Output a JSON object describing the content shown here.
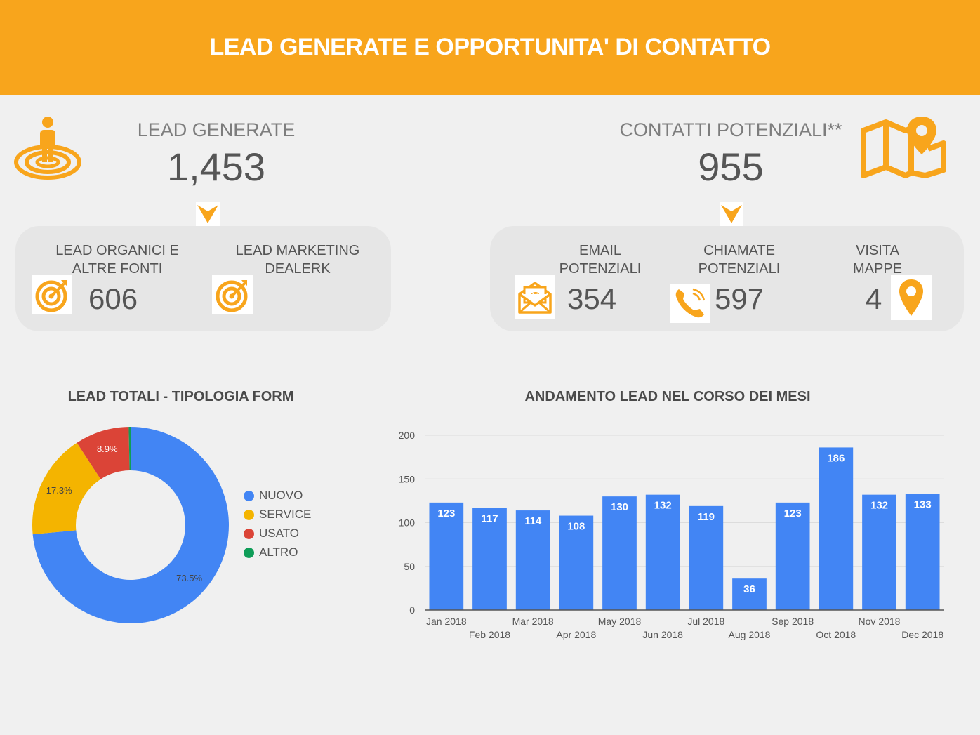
{
  "header": {
    "title": "LEAD GENERATE E OPPORTUNITA' DI CONTATTO"
  },
  "kpis": {
    "lead_generate": {
      "label": "LEAD GENERATE",
      "value": "1,453"
    },
    "contatti_potenziali": {
      "label": "CONTATTI POTENZIALI**",
      "value": "955"
    }
  },
  "lead_panel": {
    "organici": {
      "label": "LEAD ORGANICI E\nALTRE FONTI",
      "value": "606"
    },
    "marketing": {
      "label": "LEAD MARKETING\nDEALERK",
      "value": ""
    }
  },
  "contacts_panel": {
    "email": {
      "label": "EMAIL\nPOTENZIALI",
      "value": "354"
    },
    "chiamate": {
      "label": "CHIAMATE\nPOTENZIALI",
      "value": "597"
    },
    "mappe": {
      "label": "VISITA\nMAPPE",
      "value": "4"
    }
  },
  "icons": {
    "person_target": "person-target-icon",
    "map": "map-pin-icon",
    "target": "target-icon",
    "email": "email-icon",
    "phone": "phone-icon",
    "pin": "location-pin-icon"
  },
  "colors": {
    "accent": "#f8a51c",
    "nuovo": "#4285f4",
    "service": "#f4b400",
    "usato": "#db4437",
    "altro": "#0f9d58",
    "bar": "#4285f4"
  },
  "chart_data": [
    {
      "type": "pie",
      "title": "LEAD TOTALI - TIPOLOGIA FORM",
      "donut": true,
      "legend": "right",
      "slices": [
        {
          "name": "NUOVO",
          "value": 73.5,
          "label": "73.5%",
          "color": "#4285f4"
        },
        {
          "name": "SERVICE",
          "value": 17.3,
          "label": "17.3%",
          "color": "#f4b400"
        },
        {
          "name": "USATO",
          "value": 8.9,
          "label": "8.9%",
          "color": "#db4437"
        },
        {
          "name": "ALTRO",
          "value": 0.3,
          "label": "",
          "color": "#0f9d58"
        }
      ]
    },
    {
      "type": "bar",
      "title": "ANDAMENTO LEAD NEL CORSO DEI MESI",
      "categories": [
        "Jan 2018",
        "Feb 2018",
        "Mar 2018",
        "Apr 2018",
        "May 2018",
        "Jun 2018",
        "Jul 2018",
        "Aug 2018",
        "Sep 2018",
        "Oct 2018",
        "Nov 2018",
        "Dec 2018"
      ],
      "values": [
        123,
        117,
        114,
        108,
        130,
        132,
        119,
        36,
        123,
        186,
        132,
        133
      ],
      "ylim": [
        0,
        200
      ],
      "yticks": [
        0,
        50,
        100,
        150,
        200
      ],
      "grid": true,
      "xlabel": "",
      "ylabel": ""
    }
  ]
}
